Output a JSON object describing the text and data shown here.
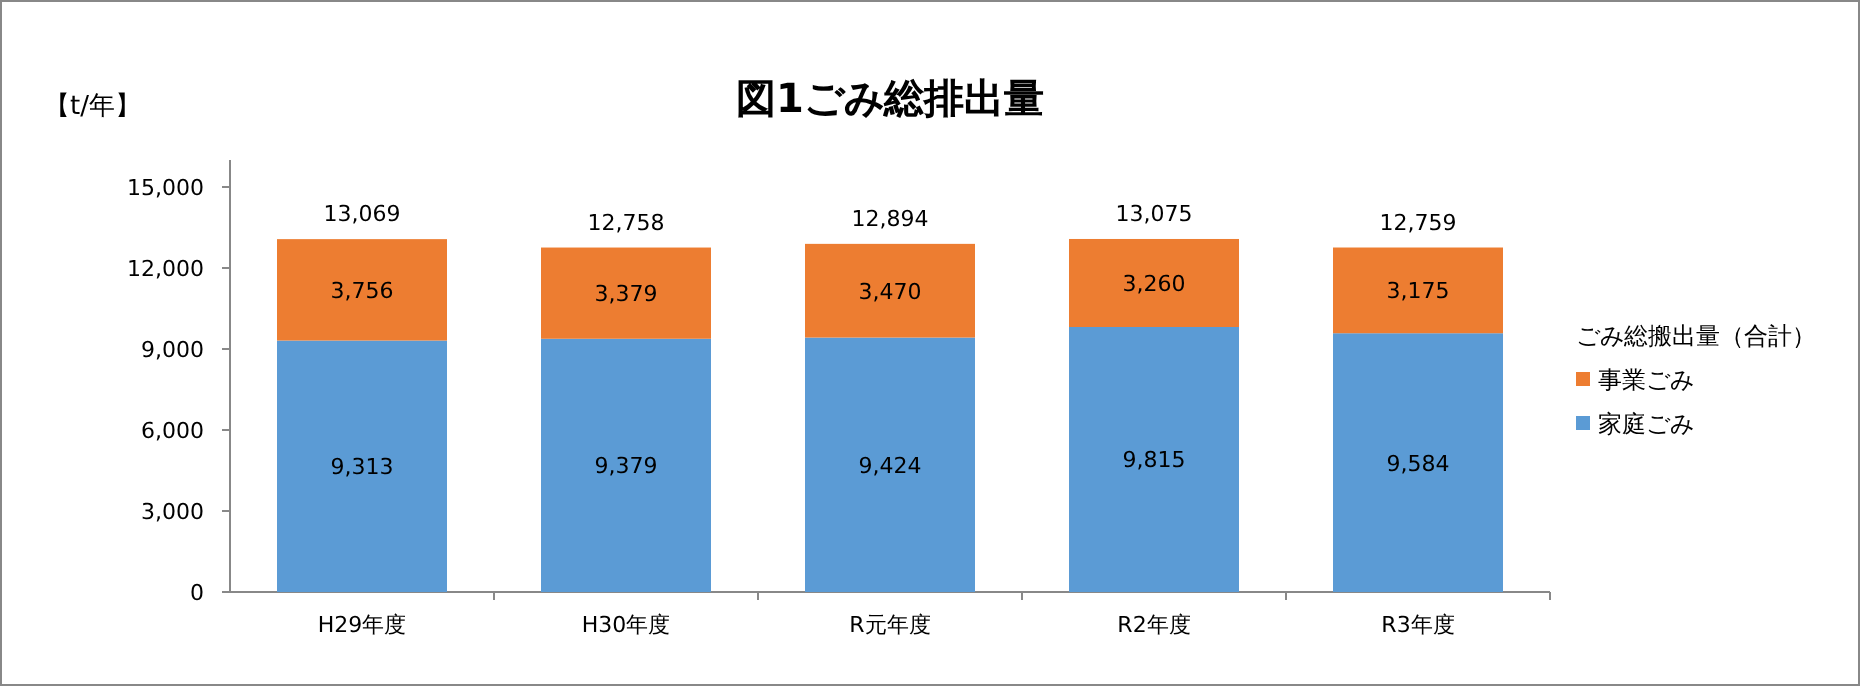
{
  "chart_data": {
    "type": "bar",
    "stacked": true,
    "title": "図1ごみ総排出量",
    "ylabel": "【t/年】",
    "legend_title": "ごみ総搬出量（合計）",
    "legend": "right",
    "categories": [
      "H29年度",
      "H30年度",
      "R元年度",
      "R2年度",
      "R3年度"
    ],
    "series": [
      {
        "name": "家庭ごみ",
        "color": "#5b9bd5",
        "values": [
          9313,
          9379,
          9424,
          9815,
          9584
        ],
        "value_labels": [
          "9,313",
          "9,379",
          "9,424",
          "9,815",
          "9,584"
        ]
      },
      {
        "name": "事業ごみ",
        "color": "#ed7d31",
        "values": [
          3756,
          3379,
          3470,
          3260,
          3175
        ],
        "value_labels": [
          "3,756",
          "3,379",
          "3,470",
          "3,260",
          "3,175"
        ]
      }
    ],
    "totals": [
      "13,069",
      "12,758",
      "12,894",
      "13,075",
      "12,759"
    ],
    "ylim": [
      0,
      16000
    ],
    "yticks": [
      {
        "value": 0,
        "label": "0"
      },
      {
        "value": 3000,
        "label": "3,000"
      },
      {
        "value": 6000,
        "label": "6,000"
      },
      {
        "value": 9000,
        "label": "9,000"
      },
      {
        "value": 12000,
        "label": "12,000"
      },
      {
        "value": 15000,
        "label": "15,000"
      }
    ]
  }
}
